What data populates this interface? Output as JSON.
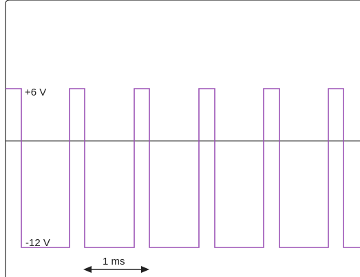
{
  "diagram": {
    "label_high": "+6 V",
    "label_low": "-12 V",
    "period_label": "1 ms",
    "colors": {
      "waveform": "#9b51b5",
      "axis": "#222222",
      "frame": "#222222",
      "text": "#222222"
    }
  }
}
